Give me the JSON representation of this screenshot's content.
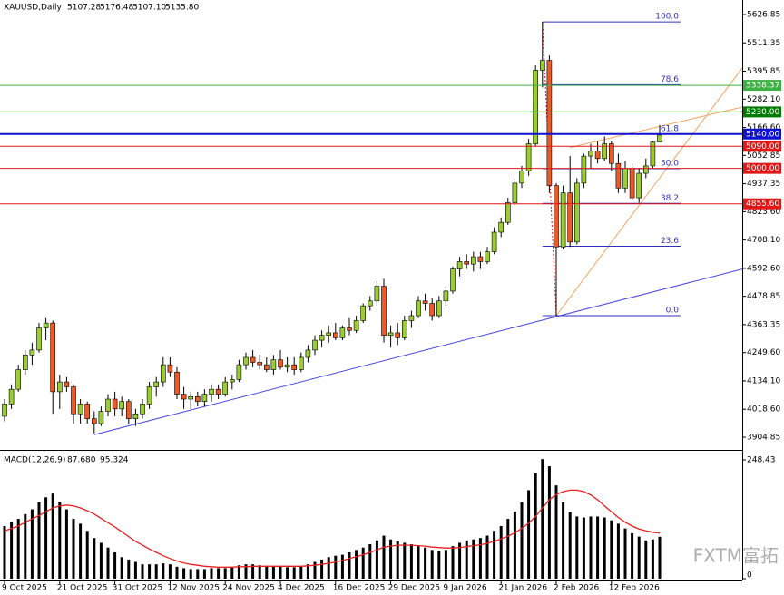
{
  "chart_data": {
    "type": "candlestick",
    "symbol": "XAUUSD,Daily",
    "header_values": [
      {
        "value": 5107.28,
        "label": "5107.28"
      },
      {
        "value": 5176.48,
        "label": "5176.48"
      },
      {
        "value": 5107.1,
        "label": "5107.10"
      },
      {
        "value": 5135.8,
        "label": "5135.80"
      }
    ],
    "categories": [
      "9 Oct 2025",
      null,
      null,
      null,
      null,
      null,
      null,
      null,
      "21 Oct 2025",
      null,
      null,
      null,
      null,
      null,
      null,
      null,
      "31 Oct 2025",
      null,
      null,
      null,
      null,
      null,
      null,
      null,
      "12 Nov 2025",
      null,
      null,
      null,
      null,
      null,
      null,
      null,
      "24 Nov 2025",
      null,
      null,
      null,
      null,
      null,
      null,
      null,
      "4 Dec 2025",
      null,
      null,
      null,
      null,
      null,
      null,
      null,
      "16 Dec 2025",
      null,
      null,
      null,
      null,
      null,
      null,
      null,
      "29 Dec 2025",
      null,
      null,
      null,
      null,
      null,
      null,
      null,
      "9 Jan 2026",
      null,
      null,
      null,
      null,
      null,
      null,
      null,
      "21 Jan 2026",
      null,
      null,
      null,
      null,
      null,
      null,
      null,
      "2 Feb 2026",
      null,
      null,
      null,
      null,
      null,
      null,
      null,
      "12 Feb 2026",
      null,
      null,
      null,
      null,
      null,
      null,
      null
    ],
    "open": [
      3990,
      4040,
      4100,
      4180,
      4240,
      4260,
      4350,
      4370,
      4090,
      4130,
      4110,
      4000,
      4040,
      3980,
      3960,
      4010,
      4060,
      4020,
      4050,
      3980,
      4000,
      4040,
      4110,
      4130,
      4200,
      4170,
      4080,
      4060,
      4070,
      4050,
      4080,
      4100,
      4080,
      4130,
      4140,
      4200,
      4230,
      4210,
      4200,
      4180,
      4220,
      4190,
      4200,
      4180,
      4230,
      4260,
      4300,
      4320,
      4330,
      4310,
      4350,
      4340,
      4380,
      4440,
      4460,
      4520,
      4320,
      4330,
      4310,
      4380,
      4400,
      4460,
      4450,
      4400,
      4460,
      4500,
      4590,
      4620,
      4610,
      4640,
      4620,
      4660,
      4740,
      4780,
      4860,
      4940,
      4990,
      5100,
      5400,
      5440,
      4930,
      4680,
      4900,
      4700,
      4940,
      5050,
      5070,
      5040,
      5100,
      5020,
      4920,
      5000,
      4880,
      4980,
      5010,
      5107.28
    ],
    "high": [
      4060,
      4120,
      4200,
      4260,
      4290,
      4370,
      4390,
      4380,
      4160,
      4150,
      4120,
      4060,
      4050,
      4010,
      4030,
      4080,
      4090,
      4070,
      4060,
      4020,
      4060,
      4130,
      4150,
      4230,
      4230,
      4190,
      4110,
      4090,
      4090,
      4100,
      4120,
      4120,
      4150,
      4160,
      4220,
      4250,
      4260,
      4240,
      4230,
      4240,
      4260,
      4230,
      4230,
      4250,
      4280,
      4320,
      4340,
      4360,
      4370,
      4360,
      4390,
      4400,
      4450,
      4480,
      4540,
      4550,
      4360,
      4370,
      4400,
      4420,
      4480,
      4490,
      4470,
      4480,
      4520,
      4600,
      4640,
      4650,
      4660,
      4660,
      4680,
      4760,
      4800,
      4880,
      4960,
      5010,
      5120,
      5420,
      5597,
      5460,
      4940,
      4930,
      5050,
      4960,
      5060,
      5100,
      5110,
      5130,
      5110,
      5060,
      5030,
      5020,
      5000,
      5040,
      5110,
      5176.48
    ],
    "low": [
      3970,
      4020,
      4090,
      4160,
      4200,
      4250,
      4300,
      4000,
      4020,
      4090,
      3960,
      3960,
      3960,
      3920,
      3950,
      3990,
      3990,
      3990,
      3960,
      3950,
      3980,
      4020,
      4070,
      4110,
      4150,
      4060,
      4020,
      4020,
      4030,
      4030,
      4050,
      4060,
      4070,
      4100,
      4130,
      4180,
      4190,
      4180,
      4170,
      4160,
      4180,
      4170,
      4160,
      4170,
      4210,
      4240,
      4270,
      4290,
      4300,
      4300,
      4320,
      4330,
      4370,
      4420,
      4440,
      4290,
      4270,
      4280,
      4300,
      4350,
      4390,
      4420,
      4380,
      4390,
      4440,
      4490,
      4560,
      4590,
      4580,
      4590,
      4610,
      4650,
      4720,
      4770,
      4850,
      4920,
      4970,
      5090,
      5330,
      4900,
      4400,
      4670,
      4680,
      4690,
      4920,
      5000,
      5020,
      5030,
      4990,
      4900,
      4900,
      4870,
      4860,
      4960,
      5000,
      5107.1
    ],
    "close": [
      4040,
      4100,
      4180,
      4240,
      4260,
      4350,
      4370,
      4090,
      4130,
      4110,
      4000,
      4040,
      3980,
      3960,
      4010,
      4060,
      4020,
      4050,
      3980,
      4000,
      4040,
      4110,
      4130,
      4200,
      4170,
      4080,
      4060,
      4070,
      4050,
      4080,
      4100,
      4080,
      4130,
      4140,
      4200,
      4230,
      4210,
      4200,
      4180,
      4220,
      4190,
      4200,
      4180,
      4230,
      4260,
      4300,
      4320,
      4330,
      4310,
      4350,
      4340,
      4380,
      4440,
      4460,
      4520,
      4320,
      4330,
      4310,
      4380,
      4400,
      4460,
      4450,
      4400,
      4460,
      4500,
      4590,
      4620,
      4610,
      4640,
      4620,
      4660,
      4740,
      4780,
      4860,
      4940,
      4990,
      5100,
      5400,
      5440,
      4930,
      4680,
      4900,
      4700,
      4940,
      5050,
      5070,
      5040,
      5100,
      5020,
      4920,
      5000,
      4880,
      4980,
      5010,
      5107,
      5135.8
    ],
    "up_color": "#9acd32",
    "down_color": "#ec5a28",
    "ylim": [
      3860.5,
      5686
    ],
    "yticks": [
      5626.85,
      5511.35,
      5395.85,
      {
        "value": 5282.1,
        "label": "5282.10"
      },
      {
        "value": 5166.6,
        "label": "5166.60"
      },
      5052.85,
      4937.35,
      {
        "value": 4823.6,
        "label": "4823.60"
      },
      {
        "value": 4708.1,
        "label": "4708.10"
      },
      {
        "value": 4592.6,
        "label": "4592.60"
      },
      4478.85,
      4363.35,
      {
        "value": 4249.6,
        "label": "4249.60"
      },
      {
        "value": 4134.1,
        "label": "4134.10"
      },
      {
        "value": 4018.6,
        "label": "4018.60"
      },
      3904.85
    ],
    "levels": [
      {
        "value": 5338.37,
        "label": "5338.37",
        "color": "#3cb043"
      },
      {
        "value": 5230,
        "label": "5230.00",
        "color": "#007a00"
      },
      {
        "value": 5140,
        "label": "5140.00",
        "color": "#1010d0"
      },
      {
        "value": 5090,
        "label": "5090.00",
        "color": "#e01818"
      },
      {
        "value": 5000,
        "label": "5000.00",
        "color": "#e01818"
      },
      {
        "value": 4855.6,
        "label": "4855.60",
        "color": "#e01818"
      }
    ],
    "fibonacci": {
      "start": 78,
      "high": 5597,
      "low": 4400,
      "color": "#3030c0",
      "levels": [
        {
          "value": 100,
          "label": "100.0"
        },
        {
          "value": 78.6,
          "label": "78.6"
        },
        {
          "value": 61.8,
          "label": "61.8"
        },
        {
          "value": 50,
          "label": "50.0"
        },
        {
          "value": 38.2,
          "label": "38.2"
        },
        {
          "value": 23.6,
          "label": "23.6"
        },
        {
          "value": 0,
          "label": "0.0"
        }
      ]
    },
    "trendlines": [
      {
        "color": "#4a4ae0",
        "points": [
          [
            13,
            3915
          ],
          [
            107,
            4590
          ]
        ]
      },
      {
        "color": "#f4a460",
        "points": [
          [
            80,
            4400
          ],
          [
            107,
            5410
          ]
        ]
      },
      {
        "color": "#f4a460",
        "points": [
          [
            82,
            5085
          ],
          [
            107,
            5250
          ]
        ]
      }
    ],
    "macd": {
      "title": "MACD(12,26,9)",
      "last": [
        {
          "value": 87.68,
          "label": "87.680"
        },
        {
          "value": 95.324,
          "label": "95.324"
        }
      ],
      "ylim": [
        -3.8,
        261.7
      ],
      "yticks": [
        248.43,
        0
      ],
      "hist_color": "#000000",
      "signal_color": "#e82020",
      "histogram": [
        110,
        118,
        125,
        135,
        145,
        160,
        170,
        178,
        160,
        145,
        125,
        115,
        100,
        85,
        75,
        65,
        55,
        45,
        40,
        35,
        30,
        30,
        30,
        32,
        30,
        25,
        22,
        20,
        20,
        20,
        22,
        22,
        22,
        25,
        28,
        30,
        30,
        28,
        27,
        25,
        25,
        24,
        24,
        26,
        30,
        35,
        40,
        45,
        48,
        50,
        55,
        60,
        65,
        72,
        80,
        90,
        82,
        78,
        75,
        72,
        68,
        65,
        60,
        58,
        60,
        68,
        75,
        80,
        82,
        85,
        90,
        100,
        110,
        125,
        140,
        160,
        185,
        220,
        250,
        235,
        195,
        160,
        140,
        130,
        128,
        130,
        130,
        128,
        122,
        115,
        105,
        95,
        88,
        80,
        82,
        87.68
      ],
      "signal": [
        100,
        105,
        110,
        118,
        125,
        132,
        140,
        148,
        152,
        154,
        152,
        148,
        142,
        135,
        126,
        117,
        108,
        98,
        88,
        78,
        70,
        62,
        55,
        48,
        42,
        37,
        33,
        30,
        28,
        26,
        25,
        24,
        24,
        24,
        25,
        25,
        26,
        26,
        26,
        26,
        26,
        26,
        26,
        26,
        27,
        28,
        30,
        32,
        35,
        38,
        42,
        46,
        50,
        55,
        60,
        66,
        68,
        70,
        70,
        70,
        69,
        68,
        66,
        65,
        64,
        64,
        65,
        67,
        69,
        71,
        74,
        78,
        83,
        89,
        96,
        105,
        116,
        130,
        148,
        165,
        176,
        182,
        185,
        185,
        182,
        175,
        165,
        152,
        140,
        128,
        118,
        110,
        104,
        100,
        97,
        95.324
      ]
    },
    "watermark": "FXTM富拓"
  }
}
